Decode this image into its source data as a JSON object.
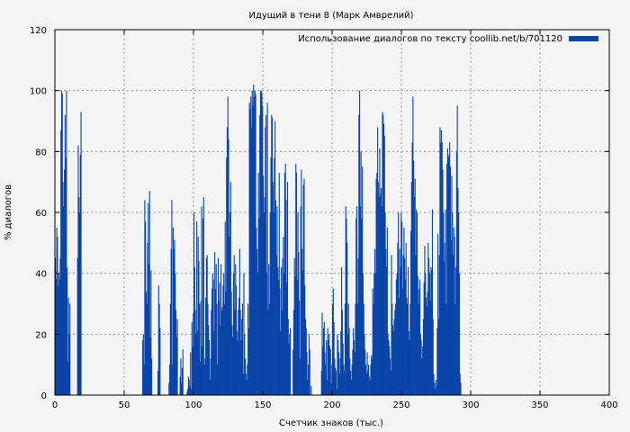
{
  "chart_data": {
    "type": "bar",
    "title": "Идущий в тени 8 (Марк Амврелий)",
    "xlabel": "Счетчик знаков (тыс.)",
    "ylabel": "% диалогов",
    "xlim": [
      0,
      400
    ],
    "ylim": [
      0,
      120
    ],
    "xticks": [
      "0",
      "50",
      "100",
      "150",
      "200",
      "250",
      "300",
      "350",
      "400"
    ],
    "yticks": [
      "0",
      "20",
      "40",
      "60",
      "80",
      "100",
      "120"
    ],
    "grid": true,
    "legend_position": "top-right",
    "bar_color": "#0b45a8",
    "series": [
      {
        "name": "Использование диалогов по тексту coollib.net/b/701120",
        "x_step": 0.5,
        "values": [
          45,
          38,
          55,
          52,
          36,
          40,
          38,
          45,
          87,
          100,
          99,
          70,
          62,
          74,
          92,
          78,
          100,
          42,
          11,
          32,
          20,
          30,
          0,
          0,
          0,
          0,
          0,
          0,
          0,
          0,
          0,
          0,
          45,
          82,
          65,
          60,
          79,
          93,
          0,
          0,
          0,
          0,
          0,
          0,
          0,
          0,
          0,
          0,
          0,
          0,
          0,
          0,
          0,
          0,
          0,
          0,
          0,
          0,
          0,
          0,
          0,
          0,
          0,
          0,
          0,
          0,
          0,
          0,
          0,
          0,
          0,
          0,
          0,
          0,
          0,
          0,
          0,
          0,
          0,
          0,
          0,
          0,
          0,
          0,
          0,
          0,
          0,
          0,
          0,
          0,
          0,
          0,
          0,
          0,
          0,
          0,
          0,
          0,
          0,
          0,
          0,
          0,
          0,
          0,
          0,
          0,
          0,
          0,
          0,
          0,
          0,
          0,
          0,
          0,
          0,
          0,
          0,
          0,
          0,
          0,
          0,
          0,
          0,
          0,
          0,
          0,
          18,
          20,
          10,
          64,
          57,
          34,
          30,
          50,
          63,
          43,
          67,
          19,
          41,
          12,
          0,
          0,
          0,
          0,
          0,
          0,
          0,
          0,
          8,
          36,
          30,
          22,
          0,
          0,
          0,
          0,
          0,
          0,
          0,
          0,
          0,
          0,
          0,
          0,
          4,
          10,
          30,
          48,
          64,
          10,
          55,
          48,
          51,
          40,
          28,
          19,
          25,
          0,
          0,
          0,
          6,
          12,
          4,
          9,
          15,
          0,
          0,
          0,
          0,
          0,
          1,
          2,
          6,
          5,
          3,
          14,
          2,
          24,
          16,
          27,
          60,
          42,
          28,
          20,
          57,
          21,
          52,
          44,
          30,
          11,
          31,
          62,
          16,
          58,
          65,
          10,
          12,
          32,
          45,
          46,
          30,
          23,
          18,
          5,
          12,
          28,
          35,
          40,
          38,
          21,
          47,
          35,
          43,
          30,
          10,
          45,
          31,
          37,
          23,
          43,
          28,
          29,
          36,
          40,
          30,
          57,
          34,
          78,
          88,
          98,
          84,
          52,
          60,
          70,
          34,
          23,
          19,
          40,
          46,
          28,
          43,
          36,
          21,
          18,
          28,
          32,
          48,
          28,
          18,
          25,
          30,
          7,
          40,
          20,
          12,
          7,
          5,
          10,
          30,
          22,
          96,
          94,
          98,
          88,
          100,
          95,
          102,
          98,
          100,
          99,
          55,
          48,
          40,
          73,
          58,
          92,
          100,
          100,
          99,
          95,
          72,
          60,
          65,
          88,
          92,
          40,
          96,
          28,
          43,
          30,
          60,
          78,
          92,
          91,
          70,
          60,
          78,
          90,
          64,
          46,
          62,
          42,
          38,
          73,
          35,
          21,
          42,
          28,
          45,
          52,
          40,
          73,
          76,
          64,
          37,
          70,
          25,
          17,
          20,
          22,
          0,
          0,
          0,
          15,
          28,
          45,
          39,
          76,
          73,
          38,
          60,
          47,
          31,
          12,
          62,
          74,
          48,
          41,
          69,
          71,
          36,
          25,
          22,
          14,
          5,
          10,
          20,
          15,
          0,
          3,
          0,
          0,
          0,
          0,
          0,
          0,
          0,
          0,
          0,
          0,
          0,
          0,
          0,
          0,
          8,
          27,
          16,
          22,
          24,
          14,
          10,
          18,
          5,
          22,
          18,
          20,
          16,
          15,
          4,
          10,
          30,
          35,
          24,
          12,
          9,
          8,
          2,
          20,
          18,
          14,
          7,
          12,
          21,
          42,
          28,
          17,
          10,
          8,
          30,
          62,
          58,
          50,
          20,
          30,
          22,
          12,
          8,
          5,
          10,
          15,
          22,
          18,
          14,
          30,
          58,
          62,
          30,
          45,
          92,
          100,
          62,
          80,
          58,
          75,
          40,
          30,
          20,
          15,
          10,
          7,
          14,
          8,
          10,
          6,
          5,
          10,
          13,
          12,
          35,
          30,
          40,
          48,
          40,
          71,
          73,
          88,
          70,
          65,
          81,
          66,
          68,
          62,
          93,
          92,
          89,
          85,
          60,
          48,
          42,
          55,
          20,
          18,
          16,
          12,
          8,
          46,
          30,
          23,
          21,
          25,
          28,
          30,
          38,
          40,
          50,
          60,
          32,
          48,
          42,
          60,
          57,
          35,
          46,
          55,
          45,
          38,
          50,
          32,
          30,
          42,
          21,
          18,
          30,
          54,
          70,
          83,
          98,
          77,
          65,
          71,
          46,
          61,
          60,
          39,
          30,
          35,
          38,
          20,
          18,
          12,
          16,
          25,
          37,
          49,
          40,
          32,
          29,
          34,
          50,
          45,
          40,
          31,
          42,
          41,
          61,
          25,
          7,
          4,
          2,
          5,
          3,
          22,
          53,
          25,
          46,
          88,
          83,
          87,
          83,
          74,
          60,
          44,
          50,
          61,
          30,
          76,
          81,
          79,
          78,
          83,
          75,
          51,
          72,
          60,
          46,
          55,
          52,
          30,
          42,
          80,
          95,
          68,
          60,
          40,
          7,
          4
        ]
      }
    ]
  }
}
